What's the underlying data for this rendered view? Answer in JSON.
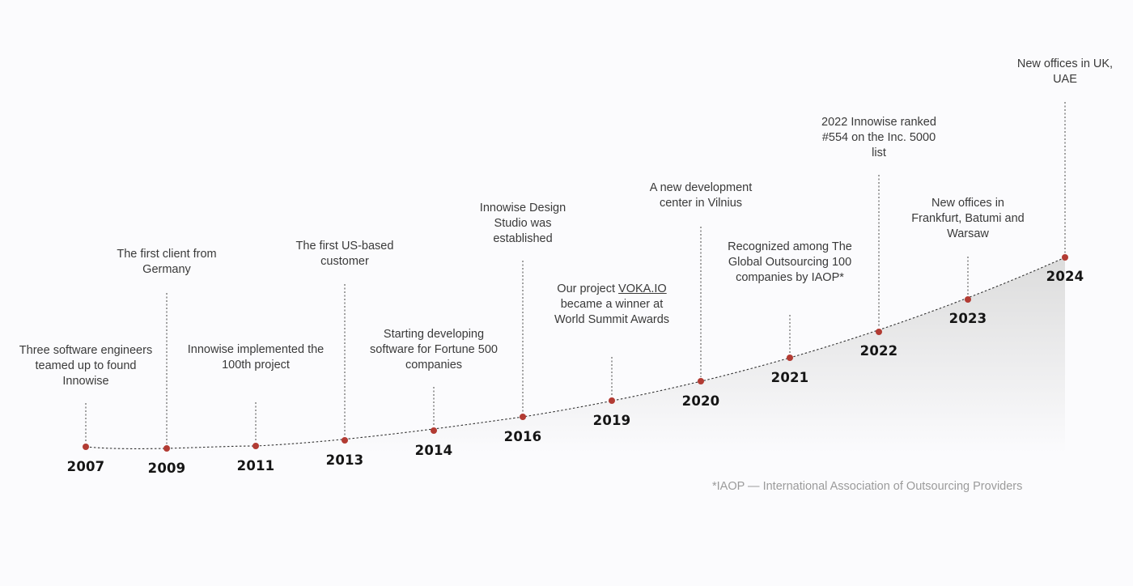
{
  "colors": {
    "background": "#fbfbfd",
    "dot": "#b23b33",
    "connector": "#444444",
    "area_top": "#dedede",
    "footnote": "#9b9b9b"
  },
  "milestones": [
    {
      "year": "2007",
      "description": "Three software engineers teamed up to found Innowise"
    },
    {
      "year": "2009",
      "description": "The first client from Germany"
    },
    {
      "year": "2011",
      "description": "Innowise implemented the 100th project"
    },
    {
      "year": "2013",
      "description": "The first US-based customer"
    },
    {
      "year": "2014",
      "description": "Starting developing software for Fortune 500 companies"
    },
    {
      "year": "2016",
      "description": "Innowise Design Studio was established"
    },
    {
      "year": "2019",
      "description_before": "Our project ",
      "description_link": "VOKA.IO",
      "description_after": " became a winner at World Summit Awards"
    },
    {
      "year": "2020",
      "description": "A new development center in Vilnius"
    },
    {
      "year": "2021",
      "description": "Recognized among The Global Outsourcing 100 companies by IAOP*"
    },
    {
      "year": "2022",
      "description": "2022 Innowise ranked #554 on the Inc. 5000 list"
    },
    {
      "year": "2023",
      "description": "New offices in Frankfurt, Batumi and Warsaw"
    },
    {
      "year": "2024",
      "description": "New offices in UK, UAE"
    }
  ],
  "footnote": "*IAOP — International Association of Outsourcing Providers"
}
